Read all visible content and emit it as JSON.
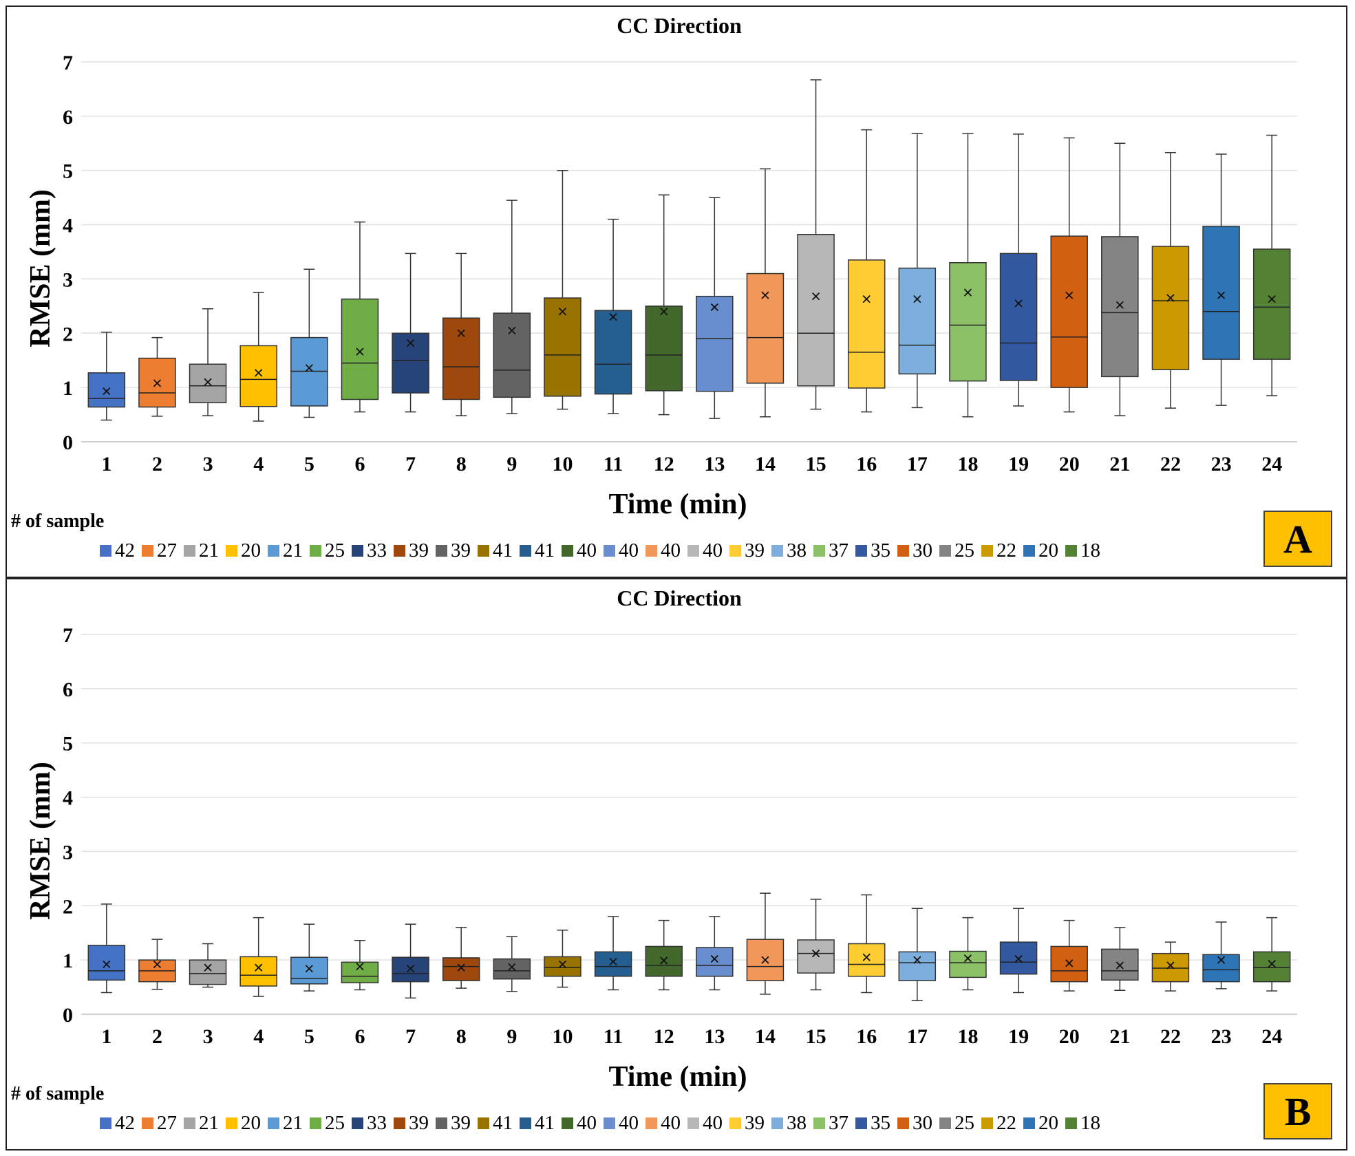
{
  "colors": [
    "#4472C4",
    "#ED7D31",
    "#A5A5A5",
    "#FFC000",
    "#5B9BD5",
    "#70AD47",
    "#264478",
    "#9E480E",
    "#636363",
    "#997300",
    "#255E91",
    "#43682B",
    "#698ED0",
    "#F1975A",
    "#B7B7B7",
    "#FFCD33",
    "#7CAFDD",
    "#8CC168",
    "#335AA1",
    "#D26012",
    "#848484",
    "#CC9A00",
    "#2E75B6",
    "#548235"
  ],
  "chart_data": [
    {
      "type": "box",
      "panel": "A",
      "title": "CC Direction",
      "xlabel": "Time  (min)",
      "ylabel": "RMSE (mm)",
      "ylim": [
        0,
        7
      ],
      "yticks": [
        "0",
        "1",
        "2",
        "3",
        "4",
        "5",
        "6",
        "7"
      ],
      "categories": [
        "1",
        "2",
        "3",
        "4",
        "5",
        "6",
        "7",
        "8",
        "9",
        "10",
        "11",
        "12",
        "13",
        "14",
        "15",
        "16",
        "17",
        "18",
        "19",
        "20",
        "21",
        "22",
        "23",
        "24"
      ],
      "legend_title": "# of sample",
      "samples": [
        "42",
        "27",
        "21",
        "20",
        "21",
        "25",
        "33",
        "39",
        "39",
        "41",
        "41",
        "40",
        "40",
        "40",
        "40",
        "39",
        "38",
        "37",
        "35",
        "30",
        "25",
        "22",
        "20",
        "18"
      ],
      "badge": "A",
      "boxes": [
        {
          "min": 0.4,
          "q1": 0.64,
          "median": 0.8,
          "q3": 1.27,
          "max": 2.02,
          "mean": 0.93
        },
        {
          "min": 0.47,
          "q1": 0.64,
          "median": 0.9,
          "q3": 1.54,
          "max": 1.92,
          "mean": 1.08
        },
        {
          "min": 0.48,
          "q1": 0.72,
          "median": 1.03,
          "q3": 1.43,
          "max": 2.45,
          "mean": 1.1
        },
        {
          "min": 0.38,
          "q1": 0.65,
          "median": 1.15,
          "q3": 1.77,
          "max": 2.75,
          "mean": 1.27
        },
        {
          "min": 0.45,
          "q1": 0.66,
          "median": 1.3,
          "q3": 1.92,
          "max": 3.18,
          "mean": 1.36
        },
        {
          "min": 0.55,
          "q1": 0.78,
          "median": 1.45,
          "q3": 2.63,
          "max": 4.05,
          "mean": 1.66
        },
        {
          "min": 0.55,
          "q1": 0.9,
          "median": 1.5,
          "q3": 2.0,
          "max": 3.47,
          "mean": 1.82
        },
        {
          "min": 0.48,
          "q1": 0.78,
          "median": 1.38,
          "q3": 2.28,
          "max": 3.47,
          "mean": 2.0
        },
        {
          "min": 0.52,
          "q1": 0.82,
          "median": 1.32,
          "q3": 2.37,
          "max": 4.45,
          "mean": 2.05
        },
        {
          "min": 0.6,
          "q1": 0.84,
          "median": 1.6,
          "q3": 2.65,
          "max": 5.0,
          "mean": 2.4
        },
        {
          "min": 0.52,
          "q1": 0.88,
          "median": 1.43,
          "q3": 2.42,
          "max": 4.1,
          "mean": 2.3
        },
        {
          "min": 0.5,
          "q1": 0.94,
          "median": 1.6,
          "q3": 2.5,
          "max": 4.55,
          "mean": 2.4
        },
        {
          "min": 0.43,
          "q1": 0.93,
          "median": 1.9,
          "q3": 2.68,
          "max": 4.5,
          "mean": 2.48
        },
        {
          "min": 0.46,
          "q1": 1.08,
          "median": 1.92,
          "q3": 3.1,
          "max": 5.03,
          "mean": 2.7
        },
        {
          "min": 0.6,
          "q1": 1.03,
          "median": 2.0,
          "q3": 3.82,
          "max": 6.67,
          "mean": 2.68
        },
        {
          "min": 0.55,
          "q1": 0.99,
          "median": 1.65,
          "q3": 3.35,
          "max": 5.75,
          "mean": 2.63
        },
        {
          "min": 0.63,
          "q1": 1.25,
          "median": 1.78,
          "q3": 3.2,
          "max": 5.68,
          "mean": 2.63
        },
        {
          "min": 0.46,
          "q1": 1.12,
          "median": 2.15,
          "q3": 3.3,
          "max": 5.68,
          "mean": 2.75
        },
        {
          "min": 0.66,
          "q1": 1.13,
          "median": 1.82,
          "q3": 3.47,
          "max": 5.67,
          "mean": 2.55
        },
        {
          "min": 0.55,
          "q1": 1.0,
          "median": 1.93,
          "q3": 3.79,
          "max": 5.6,
          "mean": 2.7
        },
        {
          "min": 0.48,
          "q1": 1.2,
          "median": 2.38,
          "q3": 3.78,
          "max": 5.5,
          "mean": 2.52
        },
        {
          "min": 0.62,
          "q1": 1.33,
          "median": 2.6,
          "q3": 3.6,
          "max": 5.33,
          "mean": 2.65
        },
        {
          "min": 0.67,
          "q1": 1.52,
          "median": 2.4,
          "q3": 3.97,
          "max": 5.3,
          "mean": 2.7
        },
        {
          "min": 0.85,
          "q1": 1.52,
          "median": 2.48,
          "q3": 3.55,
          "max": 5.65,
          "mean": 2.63
        }
      ]
    },
    {
      "type": "box",
      "panel": "B",
      "title": "CC Direction",
      "xlabel": "Time  (min)",
      "ylabel": "RMSE (mm)",
      "ylim": [
        0,
        7
      ],
      "yticks": [
        "0",
        "1",
        "2",
        "3",
        "4",
        "5",
        "6",
        "7"
      ],
      "categories": [
        "1",
        "2",
        "3",
        "4",
        "5",
        "6",
        "7",
        "8",
        "9",
        "10",
        "11",
        "12",
        "13",
        "14",
        "15",
        "16",
        "17",
        "18",
        "19",
        "20",
        "21",
        "22",
        "23",
        "24"
      ],
      "legend_title": "# of sample",
      "samples": [
        "42",
        "27",
        "21",
        "20",
        "21",
        "25",
        "33",
        "39",
        "39",
        "41",
        "41",
        "40",
        "40",
        "40",
        "40",
        "39",
        "38",
        "37",
        "35",
        "30",
        "25",
        "22",
        "20",
        "18"
      ],
      "badge": "B",
      "boxes": [
        {
          "min": 0.4,
          "q1": 0.63,
          "median": 0.8,
          "q3": 1.27,
          "max": 2.03,
          "mean": 0.92
        },
        {
          "min": 0.46,
          "q1": 0.6,
          "median": 0.8,
          "q3": 1.0,
          "max": 1.38,
          "mean": 0.92
        },
        {
          "min": 0.5,
          "q1": 0.55,
          "median": 0.75,
          "q3": 1.0,
          "max": 1.3,
          "mean": 0.86
        },
        {
          "min": 0.33,
          "q1": 0.52,
          "median": 0.72,
          "q3": 1.06,
          "max": 1.78,
          "mean": 0.86
        },
        {
          "min": 0.43,
          "q1": 0.56,
          "median": 0.66,
          "q3": 1.05,
          "max": 1.66,
          "mean": 0.84
        },
        {
          "min": 0.45,
          "q1": 0.58,
          "median": 0.7,
          "q3": 0.96,
          "max": 1.36,
          "mean": 0.88
        },
        {
          "min": 0.3,
          "q1": 0.6,
          "median": 0.75,
          "q3": 1.05,
          "max": 1.66,
          "mean": 0.84
        },
        {
          "min": 0.48,
          "q1": 0.62,
          "median": 0.88,
          "q3": 1.04,
          "max": 1.6,
          "mean": 0.86
        },
        {
          "min": 0.42,
          "q1": 0.65,
          "median": 0.8,
          "q3": 1.02,
          "max": 1.43,
          "mean": 0.87
        },
        {
          "min": 0.5,
          "q1": 0.7,
          "median": 0.86,
          "q3": 1.06,
          "max": 1.55,
          "mean": 0.92
        },
        {
          "min": 0.45,
          "q1": 0.7,
          "median": 0.88,
          "q3": 1.15,
          "max": 1.8,
          "mean": 0.97
        },
        {
          "min": 0.45,
          "q1": 0.7,
          "median": 0.9,
          "q3": 1.25,
          "max": 1.73,
          "mean": 0.99
        },
        {
          "min": 0.45,
          "q1": 0.7,
          "median": 0.9,
          "q3": 1.23,
          "max": 1.8,
          "mean": 1.02
        },
        {
          "min": 0.37,
          "q1": 0.62,
          "median": 0.88,
          "q3": 1.38,
          "max": 2.23,
          "mean": 1.0
        },
        {
          "min": 0.45,
          "q1": 0.76,
          "median": 1.12,
          "q3": 1.37,
          "max": 2.12,
          "mean": 1.12
        },
        {
          "min": 0.4,
          "q1": 0.7,
          "median": 0.92,
          "q3": 1.3,
          "max": 2.2,
          "mean": 1.05
        },
        {
          "min": 0.25,
          "q1": 0.62,
          "median": 0.95,
          "q3": 1.15,
          "max": 1.95,
          "mean": 1.0
        },
        {
          "min": 0.45,
          "q1": 0.68,
          "median": 0.95,
          "q3": 1.16,
          "max": 1.78,
          "mean": 1.03
        },
        {
          "min": 0.4,
          "q1": 0.74,
          "median": 0.96,
          "q3": 1.33,
          "max": 1.95,
          "mean": 1.02
        },
        {
          "min": 0.43,
          "q1": 0.6,
          "median": 0.8,
          "q3": 1.25,
          "max": 1.73,
          "mean": 0.94
        },
        {
          "min": 0.44,
          "q1": 0.63,
          "median": 0.8,
          "q3": 1.2,
          "max": 1.6,
          "mean": 0.9
        },
        {
          "min": 0.43,
          "q1": 0.6,
          "median": 0.85,
          "q3": 1.12,
          "max": 1.33,
          "mean": 0.9
        },
        {
          "min": 0.47,
          "q1": 0.6,
          "median": 0.82,
          "q3": 1.1,
          "max": 1.7,
          "mean": 1.0
        },
        {
          "min": 0.43,
          "q1": 0.6,
          "median": 0.86,
          "q3": 1.15,
          "max": 1.78,
          "mean": 0.93
        }
      ]
    }
  ]
}
